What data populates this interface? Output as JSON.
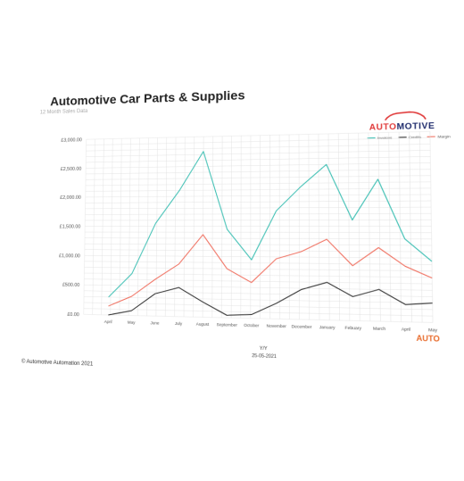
{
  "header": {
    "title": "Automotive Car Parts & Supplies",
    "subtitle": "12 Month Sales Data"
  },
  "logo": {
    "brand_main": "AUTO",
    "brand_rest": "MOTIVE"
  },
  "footer": {
    "x_title": "Y/Y",
    "date": "25-05-2021",
    "copyright": "© Automotive Automation 2021",
    "brand_small": "AUTO"
  },
  "colors": {
    "invoices": "#3dbfb3",
    "credits": "#333333",
    "margin": "#f07060",
    "grid": "#dddddd"
  },
  "chart_data": {
    "type": "line",
    "title": "Automotive Car Parts & Supplies",
    "subtitle": "12 Month Sales Data",
    "xlabel": "Y/Y",
    "ylabel": "",
    "categories": [
      "April",
      "May",
      "June",
      "July",
      "August",
      "September",
      "October",
      "November",
      "December",
      "January",
      "Febuary",
      "March",
      "April",
      "May"
    ],
    "ylim": [
      0,
      3000
    ],
    "yticks": [
      "£0.00",
      "£500.00",
      "£1,000.00",
      "£1,500.00",
      "£2,000.00",
      "£2,500.00",
      "£3,000.00"
    ],
    "grid": true,
    "legend_position": "top-right",
    "series": [
      {
        "name": "Invoices",
        "values": [
          300,
          700,
          1550,
          2100,
          2750,
          1450,
          950,
          1750,
          2150,
          2500,
          1600,
          2250,
          1300,
          950
        ]
      },
      {
        "name": "Credits",
        "values": [
          0,
          80,
          370,
          480,
          250,
          40,
          60,
          250,
          480,
          600,
          380,
          500,
          270,
          300
        ]
      },
      {
        "name": "Margin",
        "values": [
          150,
          320,
          610,
          870,
          1360,
          800,
          580,
          970,
          1090,
          1290,
          870,
          1160,
          870,
          690
        ]
      }
    ]
  }
}
